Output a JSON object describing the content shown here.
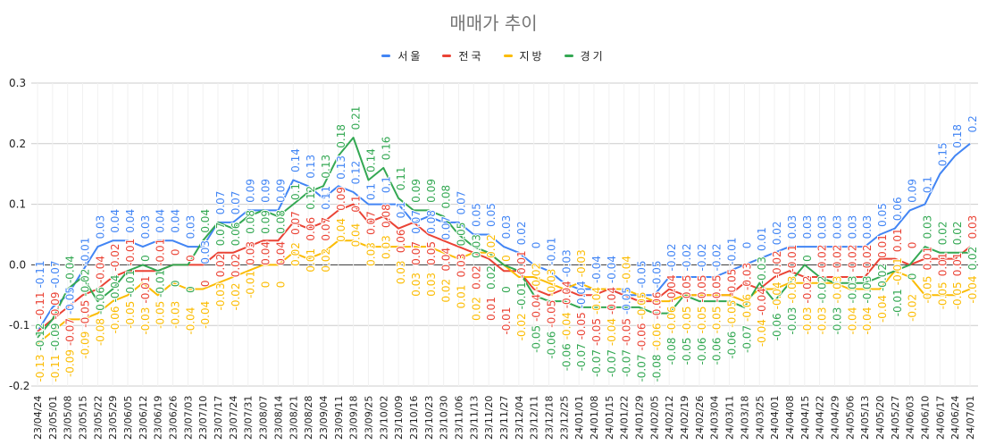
{
  "chart_data": {
    "type": "line",
    "title": "매매가 추이",
    "xlabel": "",
    "ylabel": "",
    "ylim": [
      -0.2,
      0.3
    ],
    "yticks": [
      "0.3",
      "0.2",
      "0.1",
      "0.0",
      "-0.1",
      "-0.2"
    ],
    "grid": true,
    "legend_position": "top",
    "data_labels": true,
    "x": [
      "23/04/24",
      "23/05/01",
      "23/05/08",
      "23/05/15",
      "23/05/22",
      "23/05/29",
      "23/06/05",
      "23/06/12",
      "23/06/19",
      "23/06/26",
      "23/07/03",
      "23/07/10",
      "23/07/17",
      "23/07/24",
      "23/07/31",
      "23/08/07",
      "23/08/14",
      "23/08/21",
      "23/08/28",
      "23/09/04",
      "23/09/11",
      "23/09/18",
      "23/09/25",
      "23/10/02",
      "23/10/09",
      "23/10/16",
      "23/10/23",
      "23/10/30",
      "23/11/06",
      "23/11/13",
      "23/11/20",
      "23/11/27",
      "23/12/04",
      "23/12/11",
      "23/12/18",
      "23/12/25",
      "24/01/01",
      "24/01/08",
      "24/01/15",
      "24/01/22",
      "24/01/29",
      "24/02/05",
      "24/02/12",
      "24/02/19",
      "24/02/26",
      "24/03/04",
      "24/03/11",
      "24/03/18",
      "24/03/25",
      "24/04/01",
      "24/04/08",
      "24/04/15",
      "24/04/22",
      "24/04/29",
      "24/05/06",
      "24/05/13",
      "24/05/20",
      "24/05/27",
      "24/06/03",
      "24/06/10",
      "24/06/17",
      "24/06/24",
      "24/07/01"
    ],
    "series": [
      {
        "name": "서울",
        "color": "#4285f4",
        "values": [
          -0.11,
          -0.07,
          -0.05,
          -0.01,
          0.03,
          0.04,
          0.04,
          0.03,
          0.04,
          0.04,
          0.03,
          0.03,
          0.07,
          0.07,
          0.09,
          0.09,
          0.09,
          0.14,
          0.13,
          0.11,
          0.13,
          0.12,
          0.1,
          0.1,
          0.1,
          0.07,
          0.08,
          0.07,
          0.07,
          0.05,
          0.05,
          0.03,
          0.02,
          0,
          -0.01,
          -0.03,
          -0.04,
          -0.04,
          -0.04,
          -0.05,
          -0.05,
          -0.05,
          -0.02,
          -0.02,
          -0.02,
          -0.02,
          -0.01,
          0,
          0.01,
          0.02,
          0.03,
          0.03,
          0.03,
          0.03,
          0.03,
          0.03,
          0.05,
          0.06,
          0.09,
          0.1,
          0.15,
          0.18,
          0.2
        ]
      },
      {
        "name": "전국",
        "color": "#ea4335",
        "values": [
          -0.11,
          -0.09,
          -0.07,
          -0.05,
          -0.04,
          -0.02,
          -0.01,
          -0.01,
          -0.01,
          0,
          0,
          0,
          0.02,
          0.02,
          0.03,
          0.04,
          0.04,
          0.07,
          0.06,
          0.07,
          0.09,
          0.1,
          0.07,
          0.08,
          0.06,
          0.07,
          0.05,
          0.04,
          0.03,
          0.02,
          0.01,
          -0.01,
          -0.01,
          -0.04,
          -0.05,
          -0.04,
          -0.05,
          -0.05,
          -0.04,
          -0.05,
          -0.06,
          -0.06,
          -0.04,
          -0.05,
          -0.05,
          -0.05,
          -0.05,
          -0.03,
          -0.04,
          -0.02,
          -0.01,
          -0.02,
          -0.02,
          -0.02,
          -0.02,
          -0.02,
          0.01,
          0.01,
          0,
          0.01,
          0.01,
          0.01,
          0.03
        ]
      },
      {
        "name": "지방",
        "color": "#fbbc04",
        "values": [
          -0.13,
          -0.11,
          -0.09,
          -0.09,
          -0.08,
          -0.06,
          -0.05,
          -0.03,
          -0.05,
          -0.03,
          -0.04,
          -0.04,
          -0.03,
          -0.02,
          -0.01,
          0,
          0,
          0.02,
          0.01,
          0.02,
          0.04,
          0.04,
          0.03,
          0.03,
          0.03,
          0.03,
          0.03,
          0.02,
          0.01,
          0.02,
          0.02,
          0,
          -0.02,
          -0.02,
          -0.03,
          -0.04,
          -0.03,
          -0.04,
          -0.04,
          -0.04,
          -0.05,
          -0.06,
          -0.06,
          -0.05,
          -0.05,
          -0.05,
          -0.05,
          -0.06,
          -0.04,
          -0.04,
          -0.03,
          -0.03,
          -0.03,
          -0.03,
          -0.04,
          -0.04,
          -0.04,
          -0.01,
          -0.02,
          -0.05,
          -0.05,
          -0.05,
          -0.04
        ]
      },
      {
        "name": "경기",
        "color": "#34a853",
        "values": [
          -0.12,
          -0.09,
          -0.04,
          -0.02,
          -0.06,
          -0.04,
          -0.01,
          0,
          -0.01,
          0,
          0,
          0.04,
          0.07,
          0.06,
          0.08,
          0.09,
          0.08,
          0.1,
          0.12,
          0.13,
          0.18,
          0.21,
          0.14,
          0.16,
          0.11,
          0.09,
          0.09,
          0.08,
          0.05,
          0.03,
          0.02,
          0,
          -0.01,
          -0.05,
          -0.06,
          -0.06,
          -0.07,
          -0.07,
          -0.07,
          -0.07,
          -0.07,
          -0.08,
          -0.08,
          -0.05,
          -0.06,
          -0.06,
          -0.06,
          -0.07,
          -0.03,
          -0.06,
          -0.03,
          0,
          -0.02,
          -0.03,
          -0.03,
          -0.03,
          -0.02,
          -0.01,
          0,
          0.03,
          0.02,
          0.02,
          0.02
        ]
      }
    ]
  }
}
